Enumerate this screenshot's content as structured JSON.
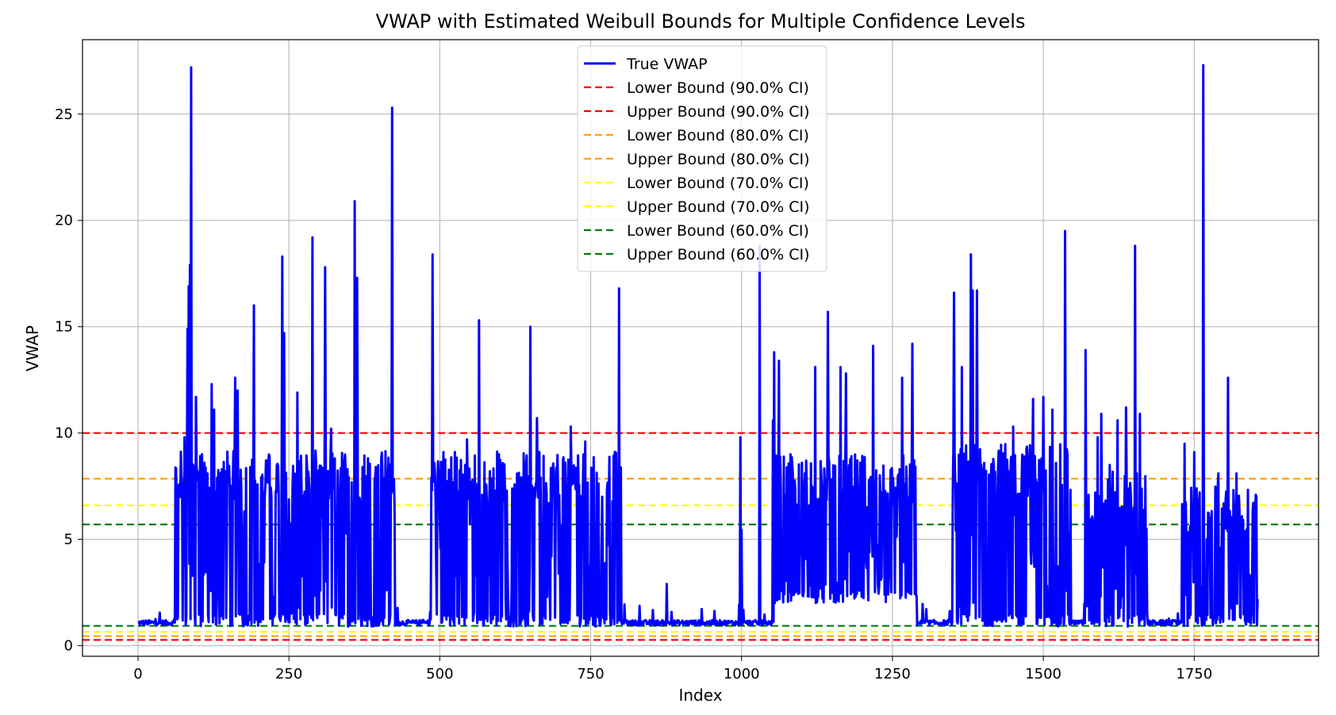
{
  "chart_data": {
    "type": "line",
    "title": "VWAP with Estimated Weibull Bounds for Multiple Confidence Levels",
    "xlabel": "Index",
    "ylabel": "VWAP",
    "xlim": [
      -92,
      1956
    ],
    "ylim": [
      -0.5,
      28.5
    ],
    "xticks": [
      0,
      250,
      500,
      750,
      1000,
      1250,
      1500,
      1750
    ],
    "yticks": [
      0,
      5,
      10,
      15,
      20,
      25
    ],
    "grid": true,
    "legend_position": "upper center",
    "series_name": "True VWAP",
    "series_color": "#0000ff",
    "n_points": 1856,
    "x_start": 0,
    "baseline": 1.0,
    "dense_regions": [
      {
        "start": 62,
        "end": 425,
        "low": 0.9,
        "high": 9.2
      },
      {
        "start": 485,
        "end": 800,
        "low": 0.9,
        "high": 9.2
      },
      {
        "start": 995,
        "end": 1003,
        "low": 0.9,
        "high": 9.8
      },
      {
        "start": 1055,
        "end": 1290,
        "low": 2.0,
        "high": 9.0
      },
      {
        "start": 1350,
        "end": 1545,
        "low": 0.9,
        "high": 9.5
      },
      {
        "start": 1568,
        "end": 1672,
        "low": 0.9,
        "high": 8.2
      },
      {
        "start": 1730,
        "end": 1856,
        "low": 0.9,
        "high": 7.5
      }
    ],
    "spikes": [
      {
        "x": 77,
        "y": 9.8
      },
      {
        "x": 82,
        "y": 14.9
      },
      {
        "x": 84,
        "y": 16.9
      },
      {
        "x": 86,
        "y": 17.9
      },
      {
        "x": 88,
        "y": 27.2
      },
      {
        "x": 96,
        "y": 11.7
      },
      {
        "x": 110,
        "y": 8.6
      },
      {
        "x": 122,
        "y": 12.3
      },
      {
        "x": 126,
        "y": 11.1
      },
      {
        "x": 145,
        "y": 8.2
      },
      {
        "x": 161,
        "y": 12.6
      },
      {
        "x": 165,
        "y": 12.0
      },
      {
        "x": 192,
        "y": 16.0
      },
      {
        "x": 214,
        "y": 8.3
      },
      {
        "x": 239,
        "y": 18.3
      },
      {
        "x": 242,
        "y": 14.7
      },
      {
        "x": 264,
        "y": 11.9
      },
      {
        "x": 289,
        "y": 19.2
      },
      {
        "x": 310,
        "y": 17.8
      },
      {
        "x": 320,
        "y": 10.2
      },
      {
        "x": 359,
        "y": 20.9
      },
      {
        "x": 363,
        "y": 17.3
      },
      {
        "x": 421,
        "y": 25.3
      },
      {
        "x": 488,
        "y": 18.4
      },
      {
        "x": 506,
        "y": 9.1
      },
      {
        "x": 545,
        "y": 9.7
      },
      {
        "x": 565,
        "y": 15.3
      },
      {
        "x": 598,
        "y": 9.0
      },
      {
        "x": 650,
        "y": 15.0
      },
      {
        "x": 661,
        "y": 10.7
      },
      {
        "x": 717,
        "y": 10.3
      },
      {
        "x": 741,
        "y": 9.6
      },
      {
        "x": 797,
        "y": 16.8
      },
      {
        "x": 876,
        "y": 2.9
      },
      {
        "x": 998,
        "y": 9.8
      },
      {
        "x": 1030,
        "y": 18.8
      },
      {
        "x": 1052,
        "y": 10.6
      },
      {
        "x": 1054,
        "y": 13.8
      },
      {
        "x": 1062,
        "y": 13.4
      },
      {
        "x": 1100,
        "y": 8.6
      },
      {
        "x": 1122,
        "y": 13.1
      },
      {
        "x": 1143,
        "y": 15.7
      },
      {
        "x": 1164,
        "y": 13.1
      },
      {
        "x": 1173,
        "y": 12.8
      },
      {
        "x": 1218,
        "y": 14.1
      },
      {
        "x": 1266,
        "y": 12.6
      },
      {
        "x": 1283,
        "y": 14.2
      },
      {
        "x": 1352,
        "y": 16.6
      },
      {
        "x": 1365,
        "y": 13.1
      },
      {
        "x": 1380,
        "y": 18.4
      },
      {
        "x": 1383,
        "y": 16.7
      },
      {
        "x": 1390,
        "y": 16.7
      },
      {
        "x": 1450,
        "y": 10.3
      },
      {
        "x": 1483,
        "y": 11.6
      },
      {
        "x": 1500,
        "y": 11.7
      },
      {
        "x": 1515,
        "y": 11.1
      },
      {
        "x": 1536,
        "y": 19.5
      },
      {
        "x": 1570,
        "y": 13.9
      },
      {
        "x": 1590,
        "y": 9.8
      },
      {
        "x": 1596,
        "y": 10.9
      },
      {
        "x": 1610,
        "y": 8.5
      },
      {
        "x": 1623,
        "y": 10.6
      },
      {
        "x": 1637,
        "y": 11.2
      },
      {
        "x": 1652,
        "y": 18.8
      },
      {
        "x": 1660,
        "y": 10.9
      },
      {
        "x": 1734,
        "y": 9.5
      },
      {
        "x": 1750,
        "y": 9.1
      },
      {
        "x": 1765,
        "y": 27.3
      },
      {
        "x": 1790,
        "y": 8.1
      },
      {
        "x": 1806,
        "y": 12.6
      },
      {
        "x": 1820,
        "y": 8.1
      }
    ],
    "bounds": [
      {
        "label": "Lower Bound (90.0% CI)",
        "value": 0.27,
        "color": "#ff0000"
      },
      {
        "label": "Upper Bound (90.0% CI)",
        "value": 10.0,
        "color": "#ff0000"
      },
      {
        "label": "Lower Bound (80.0% CI)",
        "value": 0.45,
        "color": "#ffa500"
      },
      {
        "label": "Upper Bound (80.0% CI)",
        "value": 7.85,
        "color": "#ffa500"
      },
      {
        "label": "Lower Bound (70.0% CI)",
        "value": 0.65,
        "color": "#ffff00"
      },
      {
        "label": "Upper Bound (70.0% CI)",
        "value": 6.6,
        "color": "#ffff00"
      },
      {
        "label": "Lower Bound (60.0% CI)",
        "value": 0.93,
        "color": "#008000"
      },
      {
        "label": "Upper Bound (60.0% CI)",
        "value": 5.7,
        "color": "#008000"
      }
    ]
  }
}
